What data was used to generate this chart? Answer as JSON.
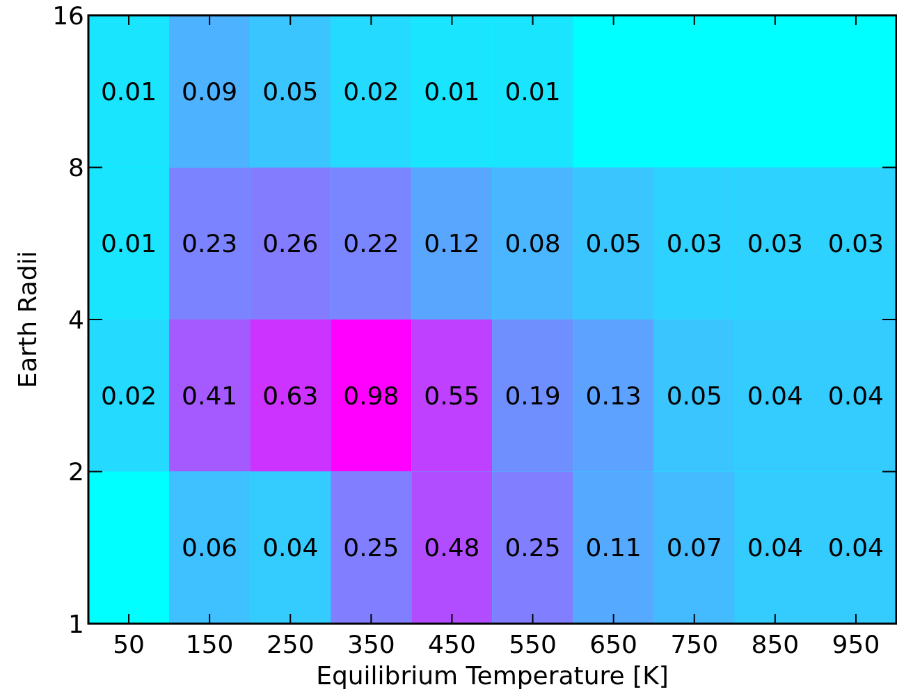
{
  "chart_data": {
    "type": "heatmap",
    "xlabel": "Equilibrium Temperature [K]",
    "ylabel": "Earth Radii",
    "categories": [
      "50",
      "150",
      "250",
      "350",
      "450",
      "550",
      "650",
      "750",
      "850",
      "950"
    ],
    "ylim": [
      1,
      16
    ],
    "yticks": [
      1,
      2,
      4,
      8,
      16
    ],
    "log": "y",
    "data_labels": true,
    "cells": [
      [
        0.01,
        0.09,
        0.05,
        0.02,
        0.01,
        0.01,
        null,
        null,
        null,
        null
      ],
      [
        0.01,
        0.23,
        0.26,
        0.22,
        0.12,
        0.08,
        0.05,
        0.03,
        0.03,
        0.03
      ],
      [
        0.02,
        0.41,
        0.63,
        0.98,
        0.55,
        0.19,
        0.13,
        0.05,
        0.04,
        0.04
      ],
      [
        null,
        0.06,
        0.04,
        0.25,
        0.48,
        0.25,
        0.11,
        0.07,
        0.04,
        0.04
      ]
    ]
  }
}
